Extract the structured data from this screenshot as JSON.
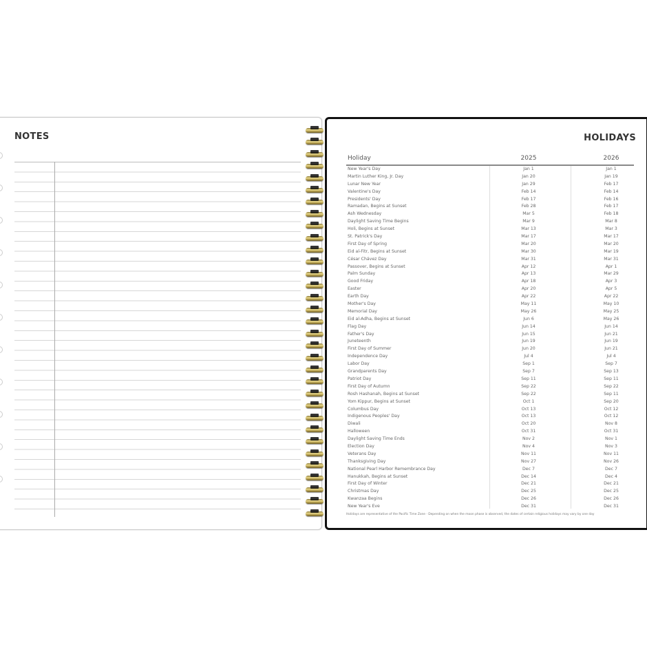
{
  "notes": {
    "title": "NOTES"
  },
  "holidays": {
    "title": "HOLIDAYS",
    "headers": {
      "name": "Holiday",
      "year_a": "2025",
      "year_b": "2026"
    },
    "rows": [
      [
        "New Year's Day",
        "Jan 1",
        "Jan 1"
      ],
      [
        "Martin Luther King, Jr. Day",
        "Jan 20",
        "Jan 19"
      ],
      [
        "Lunar New Year",
        "Jan 29",
        "Feb 17"
      ],
      [
        "Valentine's Day",
        "Feb 14",
        "Feb 14"
      ],
      [
        "Presidents' Day",
        "Feb 17",
        "Feb 16"
      ],
      [
        "Ramadan, Begins at Sunset",
        "Feb 28",
        "Feb 17"
      ],
      [
        "Ash Wednesday",
        "Mar 5",
        "Feb 18"
      ],
      [
        "Daylight Saving Time Begins",
        "Mar 9",
        "Mar 8"
      ],
      [
        "Holi, Begins at Sunset",
        "Mar 13",
        "Mar 3"
      ],
      [
        "St. Patrick's Day",
        "Mar 17",
        "Mar 17"
      ],
      [
        "First Day of Spring",
        "Mar 20",
        "Mar 20"
      ],
      [
        "Eid al-Fitr, Begins at Sunset",
        "Mar 30",
        "Mar 19"
      ],
      [
        "César Chávez Day",
        "Mar 31",
        "Mar 31"
      ],
      [
        "Passover, Begins at Sunset",
        "Apr 12",
        "Apr 1"
      ],
      [
        "Palm Sunday",
        "Apr 13",
        "Mar 29"
      ],
      [
        "Good Friday",
        "Apr 18",
        "Apr 3"
      ],
      [
        "Easter",
        "Apr 20",
        "Apr 5"
      ],
      [
        "Earth Day",
        "Apr 22",
        "Apr 22"
      ],
      [
        "Mother's Day",
        "May 11",
        "May 10"
      ],
      [
        "Memorial Day",
        "May 26",
        "May 25"
      ],
      [
        "Eid al-Adha, Begins at Sunset",
        "Jun 6",
        "May 26"
      ],
      [
        "Flag Day",
        "Jun 14",
        "Jun 14"
      ],
      [
        "Father's Day",
        "Jun 15",
        "Jun 21"
      ],
      [
        "Juneteenth",
        "Jun 19",
        "Jun 19"
      ],
      [
        "First Day of Summer",
        "Jun 20",
        "Jun 21"
      ],
      [
        "Independence Day",
        "Jul 4",
        "Jul 4"
      ],
      [
        "Labor Day",
        "Sep 1",
        "Sep 7"
      ],
      [
        "Grandparents Day",
        "Sep 7",
        "Sep 13"
      ],
      [
        "Patriot Day",
        "Sep 11",
        "Sep 11"
      ],
      [
        "First Day of Autumn",
        "Sep 22",
        "Sep 22"
      ],
      [
        "Rosh Hashanah, Begins at Sunset",
        "Sep 22",
        "Sep 11"
      ],
      [
        "Yom Kippur, Begins at Sunset",
        "Oct 1",
        "Sep 20"
      ],
      [
        "Columbus Day",
        "Oct 13",
        "Oct 12"
      ],
      [
        "Indigenous Peoples' Day",
        "Oct 13",
        "Oct 12"
      ],
      [
        "Diwali",
        "Oct 20",
        "Nov 8"
      ],
      [
        "Halloween",
        "Oct 31",
        "Oct 31"
      ],
      [
        "Daylight Saving Time Ends",
        "Nov 2",
        "Nov 1"
      ],
      [
        "Election Day",
        "Nov 4",
        "Nov 3"
      ],
      [
        "Veterans Day",
        "Nov 11",
        "Nov 11"
      ],
      [
        "Thanksgiving Day",
        "Nov 27",
        "Nov 26"
      ],
      [
        "National Pearl Harbor Remembrance Day",
        "Dec 7",
        "Dec 7"
      ],
      [
        "Hanukkah, Begins at Sunset",
        "Dec 14",
        "Dec 4"
      ],
      [
        "First Day of Winter",
        "Dec 21",
        "Dec 21"
      ],
      [
        "Christmas Day",
        "Dec 25",
        "Dec 25"
      ],
      [
        "Kwanzaa Begins",
        "Dec 26",
        "Dec 26"
      ],
      [
        "New Year's Eve",
        "Dec 31",
        "Dec 31"
      ]
    ],
    "footnote": "Holidays are representative of the Pacific Time Zone  ·  Depending on when the moon phase is observed, the dates of certain religious holidays may vary by one day"
  },
  "colors": {
    "page_border_right": "#111111",
    "spiral": "#d8c67a"
  }
}
